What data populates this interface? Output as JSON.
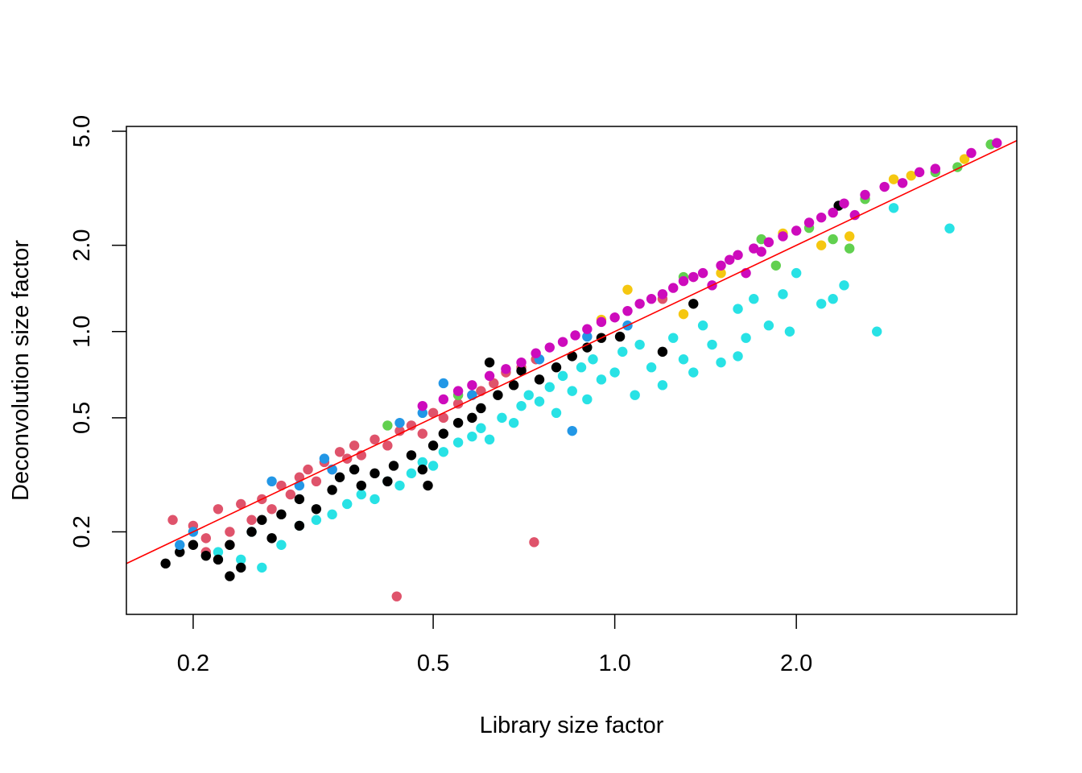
{
  "chart_data": {
    "type": "scatter",
    "title": "",
    "xlabel": "Library size factor",
    "ylabel": "Deconvolution size factor",
    "x_scale": "log",
    "y_scale": "log",
    "xlim": [
      0.155,
      4.64
    ],
    "ylim": [
      0.103,
      5.2
    ],
    "x_ticks": [
      0.2,
      0.5,
      1.0,
      2.0
    ],
    "x_tick_labels": [
      "0.2",
      "0.5",
      "1.0",
      "2.0"
    ],
    "y_ticks": [
      0.2,
      0.5,
      1.0,
      2.0,
      5.0
    ],
    "y_tick_labels": [
      "0.2",
      "0.5",
      "1.0",
      "2.0",
      "5.0"
    ],
    "grid": false,
    "legend": "none",
    "reference_line": {
      "type": "identity",
      "slope": 1,
      "intercept": 0,
      "color": "#FF0000"
    },
    "series": [
      {
        "color": "#28E2E5",
        "points": [
          [
            0.22,
            0.17
          ],
          [
            0.24,
            0.16
          ],
          [
            0.25,
            0.2
          ],
          [
            0.28,
            0.18
          ],
          [
            0.3,
            0.21
          ],
          [
            0.32,
            0.22
          ],
          [
            0.34,
            0.23
          ],
          [
            0.36,
            0.25
          ],
          [
            0.38,
            0.27
          ],
          [
            0.4,
            0.26
          ],
          [
            0.42,
            0.3
          ],
          [
            0.44,
            0.29
          ],
          [
            0.46,
            0.32
          ],
          [
            0.48,
            0.35
          ],
          [
            0.5,
            0.34
          ],
          [
            0.52,
            0.38
          ],
          [
            0.55,
            0.41
          ],
          [
            0.58,
            0.43
          ],
          [
            0.6,
            0.46
          ],
          [
            0.62,
            0.42
          ],
          [
            0.65,
            0.5
          ],
          [
            0.68,
            0.48
          ],
          [
            0.7,
            0.55
          ],
          [
            0.72,
            0.6
          ],
          [
            0.75,
            0.57
          ],
          [
            0.78,
            0.64
          ],
          [
            0.8,
            0.52
          ],
          [
            0.82,
            0.7
          ],
          [
            0.85,
            0.62
          ],
          [
            0.88,
            0.75
          ],
          [
            0.9,
            0.58
          ],
          [
            0.92,
            0.8
          ],
          [
            0.95,
            0.68
          ],
          [
            1.0,
            0.72
          ],
          [
            1.03,
            0.85
          ],
          [
            1.08,
            0.6
          ],
          [
            1.1,
            0.9
          ],
          [
            1.15,
            0.75
          ],
          [
            1.2,
            0.65
          ],
          [
            1.25,
            0.95
          ],
          [
            1.3,
            0.8
          ],
          [
            1.35,
            0.72
          ],
          [
            1.4,
            1.05
          ],
          [
            1.45,
            0.9
          ],
          [
            1.5,
            0.78
          ],
          [
            1.6,
            1.2
          ],
          [
            1.65,
            0.95
          ],
          [
            1.7,
            1.3
          ],
          [
            1.8,
            1.05
          ],
          [
            1.9,
            1.35
          ],
          [
            2.0,
            1.6
          ],
          [
            2.2,
            1.25
          ],
          [
            2.3,
            1.3
          ],
          [
            2.4,
            1.45
          ],
          [
            2.72,
            1.0
          ],
          [
            3.59,
            2.29
          ],
          [
            2.9,
            2.7
          ],
          [
            1.95,
            1.0
          ],
          [
            1.6,
            0.82
          ],
          [
            0.26,
            0.15
          ]
        ]
      },
      {
        "color": "#DF536B",
        "points": [
          [
            0.185,
            0.22
          ],
          [
            0.2,
            0.21
          ],
          [
            0.21,
            0.19
          ],
          [
            0.22,
            0.24
          ],
          [
            0.23,
            0.2
          ],
          [
            0.24,
            0.25
          ],
          [
            0.25,
            0.22
          ],
          [
            0.26,
            0.26
          ],
          [
            0.27,
            0.24
          ],
          [
            0.28,
            0.29
          ],
          [
            0.29,
            0.27
          ],
          [
            0.3,
            0.31
          ],
          [
            0.31,
            0.33
          ],
          [
            0.32,
            0.3
          ],
          [
            0.33,
            0.35
          ],
          [
            0.34,
            0.33
          ],
          [
            0.35,
            0.38
          ],
          [
            0.36,
            0.36
          ],
          [
            0.37,
            0.4
          ],
          [
            0.38,
            0.37
          ],
          [
            0.4,
            0.42
          ],
          [
            0.42,
            0.4
          ],
          [
            0.44,
            0.45
          ],
          [
            0.46,
            0.47
          ],
          [
            0.48,
            0.44
          ],
          [
            0.5,
            0.52
          ],
          [
            0.52,
            0.5
          ],
          [
            0.55,
            0.56
          ],
          [
            0.58,
            0.6
          ],
          [
            0.6,
            0.62
          ],
          [
            0.63,
            0.66
          ],
          [
            0.66,
            0.72
          ],
          [
            0.7,
            0.75
          ],
          [
            0.74,
            0.8
          ],
          [
            1.2,
            1.3
          ],
          [
            1.35,
            1.55
          ],
          [
            0.435,
            0.119
          ],
          [
            0.735,
            0.184
          ],
          [
            0.21,
            0.17
          ],
          [
            0.23,
            0.18
          ]
        ]
      },
      {
        "color": "#000000",
        "points": [
          [
            0.18,
            0.155
          ],
          [
            0.19,
            0.17
          ],
          [
            0.2,
            0.18
          ],
          [
            0.21,
            0.165
          ],
          [
            0.22,
            0.16
          ],
          [
            0.23,
            0.18
          ],
          [
            0.24,
            0.15
          ],
          [
            0.25,
            0.2
          ],
          [
            0.26,
            0.22
          ],
          [
            0.27,
            0.19
          ],
          [
            0.28,
            0.23
          ],
          [
            0.3,
            0.26
          ],
          [
            0.32,
            0.24
          ],
          [
            0.34,
            0.28
          ],
          [
            0.35,
            0.31
          ],
          [
            0.37,
            0.33
          ],
          [
            0.38,
            0.29
          ],
          [
            0.4,
            0.32
          ],
          [
            0.42,
            0.3
          ],
          [
            0.43,
            0.34
          ],
          [
            0.46,
            0.37
          ],
          [
            0.48,
            0.33
          ],
          [
            0.5,
            0.4
          ],
          [
            0.52,
            0.44
          ],
          [
            0.55,
            0.48
          ],
          [
            0.58,
            0.5
          ],
          [
            0.6,
            0.54
          ],
          [
            0.64,
            0.6
          ],
          [
            0.68,
            0.65
          ],
          [
            0.7,
            0.73
          ],
          [
            0.75,
            0.68
          ],
          [
            0.8,
            0.75
          ],
          [
            0.85,
            0.82
          ],
          [
            0.9,
            0.88
          ],
          [
            0.95,
            0.95
          ],
          [
            1.02,
            0.96
          ],
          [
            1.2,
            0.85
          ],
          [
            1.35,
            1.25
          ],
          [
            2.35,
            2.75
          ],
          [
            0.49,
            0.29
          ],
          [
            0.62,
            0.78
          ],
          [
            0.3,
            0.21
          ],
          [
            0.23,
            0.14
          ]
        ]
      },
      {
        "color": "#2297E6",
        "points": [
          [
            0.19,
            0.18
          ],
          [
            0.2,
            0.2
          ],
          [
            0.27,
            0.3
          ],
          [
            0.3,
            0.29
          ],
          [
            0.33,
            0.36
          ],
          [
            0.34,
            0.33
          ],
          [
            0.44,
            0.48
          ],
          [
            0.48,
            0.52
          ],
          [
            0.52,
            0.66
          ],
          [
            0.58,
            0.6
          ],
          [
            0.75,
            0.8
          ],
          [
            0.85,
            0.45
          ],
          [
            0.9,
            0.96
          ],
          [
            1.05,
            1.05
          ]
        ]
      },
      {
        "color": "#F5C710",
        "points": [
          [
            0.95,
            1.1
          ],
          [
            1.05,
            1.4
          ],
          [
            1.3,
            1.15
          ],
          [
            1.5,
            1.6
          ],
          [
            1.9,
            2.2
          ],
          [
            2.2,
            2.0
          ],
          [
            2.45,
            2.15
          ],
          [
            2.9,
            3.4
          ],
          [
            3.1,
            3.5
          ],
          [
            3.8,
            4.0
          ]
        ]
      },
      {
        "color": "#61D04F",
        "points": [
          [
            0.42,
            0.47
          ],
          [
            0.55,
            0.6
          ],
          [
            1.3,
            1.55
          ],
          [
            1.75,
            2.1
          ],
          [
            1.85,
            1.7
          ],
          [
            2.1,
            2.3
          ],
          [
            2.3,
            2.1
          ],
          [
            2.45,
            1.95
          ],
          [
            2.6,
            2.9
          ],
          [
            3.4,
            3.6
          ],
          [
            3.7,
            3.75
          ],
          [
            4.2,
            4.5
          ]
        ]
      },
      {
        "color": "#CD0BBC",
        "points": [
          [
            0.48,
            0.55
          ],
          [
            0.52,
            0.58
          ],
          [
            0.55,
            0.62
          ],
          [
            0.58,
            0.65
          ],
          [
            0.62,
            0.7
          ],
          [
            0.66,
            0.74
          ],
          [
            0.7,
            0.78
          ],
          [
            0.74,
            0.84
          ],
          [
            0.78,
            0.88
          ],
          [
            0.82,
            0.92
          ],
          [
            0.86,
            0.97
          ],
          [
            0.9,
            1.02
          ],
          [
            0.95,
            1.08
          ],
          [
            1.0,
            1.12
          ],
          [
            1.05,
            1.18
          ],
          [
            1.1,
            1.25
          ],
          [
            1.15,
            1.3
          ],
          [
            1.2,
            1.35
          ],
          [
            1.25,
            1.42
          ],
          [
            1.3,
            1.5
          ],
          [
            1.35,
            1.55
          ],
          [
            1.4,
            1.6
          ],
          [
            1.5,
            1.7
          ],
          [
            1.55,
            1.78
          ],
          [
            1.6,
            1.85
          ],
          [
            1.7,
            1.95
          ],
          [
            1.75,
            1.9
          ],
          [
            1.8,
            2.05
          ],
          [
            1.9,
            2.15
          ],
          [
            2.0,
            2.25
          ],
          [
            2.1,
            2.4
          ],
          [
            2.2,
            2.5
          ],
          [
            2.3,
            2.6
          ],
          [
            2.4,
            2.8
          ],
          [
            2.6,
            3.0
          ],
          [
            2.8,
            3.2
          ],
          [
            3.0,
            3.3
          ],
          [
            3.2,
            3.6
          ],
          [
            3.4,
            3.7
          ],
          [
            3.9,
            4.2
          ],
          [
            4.3,
            4.55
          ],
          [
            1.45,
            1.45
          ],
          [
            1.65,
            1.6
          ],
          [
            2.5,
            2.55
          ]
        ]
      }
    ]
  }
}
